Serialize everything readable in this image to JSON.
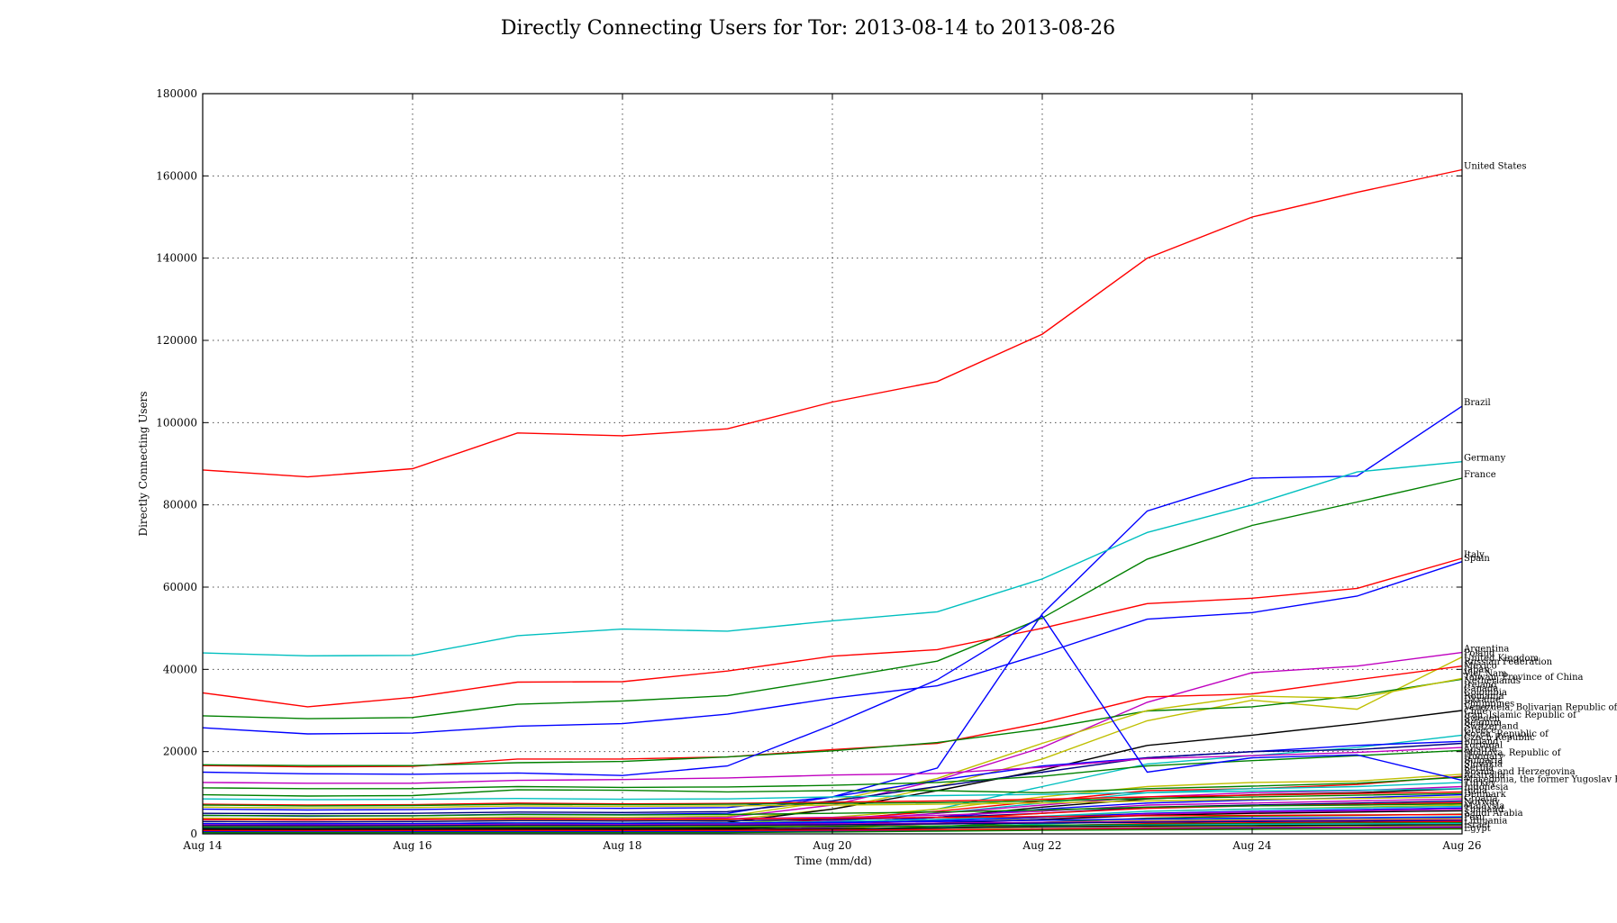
{
  "chart_data": {
    "type": "line",
    "title": "Directly Connecting Users for Tor: 2013-08-14 to 2013-08-26",
    "xlabel": "Time (mm/dd)",
    "ylabel": "Directly Connecting Users",
    "xlim": [
      0,
      12
    ],
    "ylim": [
      0,
      180000
    ],
    "grid": true,
    "x": [
      0,
      1,
      2,
      3,
      4,
      5,
      6,
      7,
      8,
      9,
      10,
      11,
      12
    ],
    "x_dates": [
      "2013-08-14",
      "2013-08-15",
      "2013-08-16",
      "2013-08-17",
      "2013-08-18",
      "2013-08-19",
      "2013-08-20",
      "2013-08-21",
      "2013-08-22",
      "2013-08-23",
      "2013-08-24",
      "2013-08-25",
      "2013-08-26"
    ],
    "x_ticks": [
      {
        "value": 0,
        "label": "Aug 14"
      },
      {
        "value": 2,
        "label": "Aug 16"
      },
      {
        "value": 4,
        "label": "Aug 18"
      },
      {
        "value": 6,
        "label": "Aug 20"
      },
      {
        "value": 8,
        "label": "Aug 22"
      },
      {
        "value": 10,
        "label": "Aug 24"
      },
      {
        "value": 12,
        "label": "Aug 26"
      }
    ],
    "y_ticks": [
      {
        "value": 0,
        "label": "0"
      },
      {
        "value": 20000,
        "label": "20000"
      },
      {
        "value": 40000,
        "label": "40000"
      },
      {
        "value": 60000,
        "label": "60000"
      },
      {
        "value": 80000,
        "label": "80000"
      },
      {
        "value": 100000,
        "label": "100000"
      },
      {
        "value": 120000,
        "label": "120000"
      },
      {
        "value": 140000,
        "label": "140000"
      },
      {
        "value": 160000,
        "label": "160000"
      },
      {
        "value": 180000,
        "label": "180000"
      }
    ],
    "series": [
      {
        "name": "United States",
        "color": "#ff0000",
        "values": [
          88500,
          86800,
          88800,
          97500,
          96800,
          98500,
          105000,
          110000,
          121500,
          140000,
          150000,
          156000,
          161500
        ]
      },
      {
        "name": "Brazil",
        "color": "#0000ff",
        "values": [
          4500,
          4300,
          4400,
          4800,
          4700,
          5000,
          9000,
          16000,
          53500,
          78500,
          86500,
          87000,
          104000
        ]
      },
      {
        "name": "Germany",
        "color": "#00bfbf",
        "values": [
          44000,
          43300,
          43400,
          48200,
          49800,
          49300,
          51800,
          54000,
          62000,
          73300,
          80000,
          88000,
          90500
        ]
      },
      {
        "name": "France",
        "color": "#008000",
        "values": [
          28700,
          28000,
          28300,
          31500,
          32300,
          33600,
          37700,
          42000,
          52500,
          66800,
          75000,
          80700,
          86500
        ]
      },
      {
        "name": "Italy",
        "color": "#ff0000",
        "values": [
          34300,
          30900,
          33200,
          36900,
          37000,
          39600,
          43200,
          44800,
          50000,
          56000,
          57300,
          59700,
          67000
        ]
      },
      {
        "name": "Spain",
        "color": "#0000ff",
        "values": [
          25800,
          24300,
          24500,
          26200,
          26800,
          29100,
          33000,
          36000,
          43800,
          52200,
          53800,
          57800,
          66200
        ]
      },
      {
        "name": "Argentina",
        "color": "#bf00bf",
        "values": [
          3500,
          3400,
          3500,
          3800,
          3700,
          4000,
          7000,
          13000,
          21000,
          32000,
          39200,
          40800,
          44100
        ]
      },
      {
        "name": "Poland",
        "color": "#bfbf00",
        "values": [
          3000,
          2900,
          3000,
          3300,
          3200,
          3400,
          6000,
          11500,
          18200,
          27500,
          32500,
          30300,
          43000
        ]
      },
      {
        "name": "United Kingdom",
        "color": "#ff0000",
        "values": [
          16600,
          16300,
          16400,
          18200,
          18200,
          18700,
          20500,
          22000,
          27000,
          33300,
          34000,
          37500,
          40800
        ]
      },
      {
        "name": "Mexico",
        "color": "#008000",
        "values": [
          16800,
          16600,
          16600,
          17300,
          17600,
          18700,
          20200,
          22200,
          25500,
          29900,
          30900,
          33600,
          37600
        ]
      },
      {
        "name": "Russian Federation",
        "color": "#bfbf00",
        "values": [
          3800,
          3700,
          3800,
          4100,
          4000,
          4300,
          8000,
          13500,
          22000,
          30000,
          33500,
          33000,
          37800
        ]
      },
      {
        "name": "Japan",
        "color": "#000000",
        "values": [
          2500,
          2400,
          2500,
          2700,
          2600,
          2800,
          6000,
          10500,
          15500,
          21500,
          24000,
          26800,
          30000
        ]
      },
      {
        "name": "Viet Nam",
        "color": "#00bfbf",
        "values": [
          1200,
          1100,
          1200,
          1300,
          1300,
          1400,
          3000,
          6000,
          11500,
          17000,
          19000,
          21000,
          24000
        ]
      },
      {
        "name": "Taiwan, Province of China",
        "color": "#0000ff",
        "values": [
          6000,
          5800,
          5900,
          6300,
          6200,
          6400,
          9000,
          13000,
          16500,
          18500,
          20000,
          21500,
          22500
        ]
      },
      {
        "name": "Netherlands",
        "color": "#000080",
        "values": [
          5000,
          4900,
          5000,
          5300,
          5200,
          5400,
          8000,
          11500,
          15000,
          18500,
          20000,
          20500,
          22000
        ]
      },
      {
        "name": "Ireland",
        "color": "#bf00bf",
        "values": [
          12500,
          12300,
          12300,
          13000,
          13200,
          13600,
          14300,
          14700,
          16200,
          18300,
          19000,
          19800,
          21000
        ]
      },
      {
        "name": "Canada",
        "color": "#008000",
        "values": [
          11200,
          11000,
          11000,
          11500,
          11300,
          11400,
          11800,
          12500,
          14000,
          16500,
          17800,
          19000,
          20300
        ]
      },
      {
        "name": "Colombia",
        "color": "#bfbf00",
        "values": [
          2200,
          2100,
          2200,
          2400,
          2300,
          2500,
          4000,
          6000,
          9000,
          11500,
          12500,
          12800,
          14500
        ]
      },
      {
        "name": "Romania",
        "color": "#ff0000",
        "values": [
          2000,
          1900,
          2000,
          2200,
          2100,
          2200,
          3500,
          5500,
          8000,
          10500,
          11000,
          12000,
          14000
        ]
      },
      {
        "name": "Ukraine",
        "color": "#008000",
        "values": [
          9500,
          9200,
          9300,
          10700,
          10600,
          10200,
          10500,
          10500,
          10000,
          11000,
          11600,
          12300,
          13800
        ]
      },
      {
        "name": "Philippines",
        "color": "#0000ff",
        "values": [
          15000,
          14600,
          14500,
          14800,
          14200,
          16500,
          26500,
          37500,
          53000,
          15000,
          18500,
          19200,
          13000
        ]
      },
      {
        "name": "Venezuela, Bolivarian Republic of",
        "color": "#00bfbf",
        "values": [
          1500,
          1400,
          1500,
          1600,
          1600,
          1700,
          3000,
          5000,
          7500,
          10000,
          11000,
          11500,
          12500
        ]
      },
      {
        "name": "Chile",
        "color": "#bf00bf",
        "values": [
          1800,
          1700,
          1800,
          2000,
          1900,
          2000,
          3200,
          5000,
          7000,
          9000,
          10000,
          10500,
          11500
        ]
      },
      {
        "name": "Iran, Islamic Republic of",
        "color": "#000000",
        "values": [
          1200,
          1100,
          1200,
          1300,
          1300,
          1400,
          2500,
          4000,
          6500,
          8500,
          9500,
          10000,
          11000
        ]
      },
      {
        "name": "Sweden",
        "color": "#00bfbf",
        "values": [
          8500,
          8300,
          8400,
          8600,
          8400,
          8500,
          9000,
          9300,
          9600,
          10000,
          10400,
          10600,
          11000
        ]
      },
      {
        "name": "Belgium",
        "color": "#ff0000",
        "values": [
          7200,
          7000,
          7100,
          7500,
          7300,
          7400,
          7700,
          8000,
          8400,
          9000,
          9400,
          9800,
          10200
        ]
      },
      {
        "name": "Switzerland",
        "color": "#008000",
        "values": [
          7000,
          6800,
          6900,
          7200,
          7100,
          7200,
          7400,
          7600,
          8000,
          8600,
          9000,
          9400,
          9800
        ]
      },
      {
        "name": "Greece",
        "color": "#0000ff",
        "values": [
          1500,
          1400,
          1500,
          1600,
          1600,
          1700,
          2500,
          4000,
          6000,
          7500,
          8200,
          8800,
          9500
        ]
      },
      {
        "name": "Korea, Republic of",
        "color": "#bfbf00",
        "values": [
          6500,
          6300,
          6400,
          6800,
          6700,
          6800,
          7000,
          7200,
          7500,
          8000,
          8400,
          8600,
          9000
        ]
      },
      {
        "name": "Czech Republic",
        "color": "#bf00bf",
        "values": [
          3500,
          3400,
          3500,
          3700,
          3600,
          3700,
          4000,
          4500,
          5500,
          7000,
          7500,
          8000,
          8500
        ]
      },
      {
        "name": "Finland",
        "color": "#000080",
        "values": [
          3000,
          2900,
          3000,
          3200,
          3100,
          3200,
          3500,
          4000,
          5000,
          6500,
          7000,
          7500,
          8000
        ]
      },
      {
        "name": "Portugal",
        "color": "#ff0000",
        "values": [
          1000,
          950,
          1000,
          1100,
          1100,
          1200,
          2000,
          3500,
          5000,
          6200,
          6800,
          7200,
          7600
        ]
      },
      {
        "name": "Austria",
        "color": "#008000",
        "values": [
          4500,
          4400,
          4400,
          4700,
          4600,
          4700,
          5000,
          5300,
          5800,
          6500,
          6800,
          7000,
          7300
        ]
      },
      {
        "name": "Moldova, Republic of",
        "color": "#bfbf00",
        "values": [
          500,
          480,
          500,
          550,
          540,
          560,
          1200,
          2500,
          4000,
          5500,
          6000,
          6500,
          7000
        ]
      },
      {
        "name": "Hungary",
        "color": "#00bfbf",
        "values": [
          2500,
          2400,
          2500,
          2700,
          2600,
          2700,
          3000,
          3500,
          4300,
          5500,
          6000,
          6300,
          6700
        ]
      },
      {
        "name": "Bulgaria",
        "color": "#0000ff",
        "values": [
          2000,
          1900,
          2000,
          2100,
          2100,
          2200,
          2600,
          3200,
          4000,
          5000,
          5500,
          5900,
          6300
        ]
      },
      {
        "name": "Slovakia",
        "color": "#bf00bf",
        "values": [
          800,
          780,
          800,
          850,
          840,
          860,
          1500,
          2500,
          3500,
          4800,
          5300,
          5600,
          6000
        ]
      },
      {
        "name": "Serbia",
        "color": "#000000",
        "values": [
          1200,
          1150,
          1200,
          1300,
          1250,
          1300,
          1800,
          2600,
          3500,
          4500,
          5000,
          5300,
          5600
        ]
      },
      {
        "name": "Bosnia and Herzegovina",
        "color": "#008000",
        "values": [
          400,
          380,
          400,
          420,
          410,
          430,
          900,
          1800,
          2800,
          3800,
          4300,
          4500,
          4800
        ]
      },
      {
        "name": "Australia",
        "color": "#ff0000",
        "values": [
          3500,
          3400,
          3500,
          3600,
          3500,
          3600,
          3800,
          4000,
          4200,
          4400,
          4500,
          4600,
          4700
        ]
      },
      {
        "name": "Macedonia, the former Yugoslav Republic of",
        "color": "#00bfbf",
        "values": [
          300,
          290,
          300,
          320,
          310,
          330,
          700,
          1500,
          2400,
          3200,
          3600,
          3900,
          4200
        ]
      },
      {
        "name": "Turkey",
        "color": "#0000ff",
        "values": [
          2500,
          2450,
          2500,
          2600,
          2550,
          2600,
          2800,
          3000,
          3300,
          3600,
          3800,
          3900,
          4000
        ]
      },
      {
        "name": "Indonesia",
        "color": "#bfbf00",
        "values": [
          1800,
          1750,
          1800,
          1900,
          1850,
          1900,
          2100,
          2400,
          2800,
          3200,
          3400,
          3500,
          3700
        ]
      },
      {
        "name": "India",
        "color": "#bf00bf",
        "values": [
          2200,
          2150,
          2200,
          2300,
          2250,
          2300,
          2400,
          2600,
          2800,
          3000,
          3200,
          3300,
          3400
        ]
      },
      {
        "name": "Denmark",
        "color": "#000080",
        "values": [
          2000,
          1950,
          2000,
          2100,
          2050,
          2100,
          2200,
          2400,
          2600,
          2800,
          3000,
          3100,
          3200
        ]
      },
      {
        "name": "Croatia",
        "color": "#ff0000",
        "values": [
          600,
          580,
          600,
          640,
          620,
          650,
          900,
          1400,
          2000,
          2500,
          2700,
          2800,
          3000
        ]
      },
      {
        "name": "Norway",
        "color": "#008000",
        "values": [
          1600,
          1550,
          1600,
          1650,
          1620,
          1650,
          1750,
          1900,
          2100,
          2300,
          2500,
          2600,
          2700
        ]
      },
      {
        "name": "Malaysia",
        "color": "#00bfbf",
        "values": [
          900,
          870,
          900,
          950,
          930,
          950,
          1100,
          1400,
          1800,
          2100,
          2300,
          2400,
          2500
        ]
      },
      {
        "name": "Thailand",
        "color": "#000000",
        "values": [
          1000,
          980,
          1000,
          1050,
          1030,
          1050,
          1200,
          1400,
          1700,
          1900,
          2000,
          2100,
          2200
        ]
      },
      {
        "name": "Saudi Arabia",
        "color": "#bfbf00",
        "values": [
          700,
          680,
          700,
          740,
          720,
          740,
          850,
          1000,
          1300,
          1600,
          1700,
          1800,
          1900
        ]
      },
      {
        "name": "Peru",
        "color": "#bf00bf",
        "values": [
          400,
          390,
          400,
          420,
          410,
          420,
          600,
          900,
          1200,
          1400,
          1500,
          1600,
          1700
        ]
      },
      {
        "name": "Lithuania",
        "color": "#0000ff",
        "values": [
          500,
          490,
          500,
          520,
          510,
          520,
          650,
          850,
          1100,
          1300,
          1400,
          1450,
          1500
        ]
      },
      {
        "name": "Israel",
        "color": "#ff0000",
        "values": [
          800,
          780,
          800,
          830,
          810,
          830,
          900,
          1000,
          1100,
          1200,
          1250,
          1300,
          1350
        ]
      },
      {
        "name": "Egypt",
        "color": "#008000",
        "values": [
          300,
          290,
          300,
          310,
          300,
          310,
          450,
          650,
          850,
          1000,
          1100,
          1150,
          1200
        ]
      }
    ],
    "end_labels": [
      "United States",
      "Brazil",
      "Germany",
      "France",
      "Italy",
      "Spain",
      "Argentina",
      "Poland",
      "United Kingdom",
      "Mexico",
      "Russian Federation",
      "Japan",
      "Viet Nam",
      "Taiwan, Province of China",
      "Netherlands",
      "Ireland",
      "Canada",
      "Colombia",
      "Romania",
      "Ukraine",
      "Philippines",
      "Venezuela, Bolivarian Republic of",
      "Chile",
      "Iran, Islamic Republic of",
      "Sweden",
      "Belgium",
      "Switzerland",
      "Greece",
      "Korea, Republic of",
      "Czech Republic",
      "Finland",
      "Portugal",
      "Austria",
      "Moldova, Republic of",
      "Hungary",
      "Bulgaria",
      "Slovakia",
      "Serbia",
      "Bosnia and Herzegovina",
      "Australia",
      "Macedonia, the former Yugoslav Republic of",
      "Turkey",
      "Indonesia",
      "India",
      "Denmark",
      "Croatia",
      "Norway",
      "Malaysia",
      "Thailand",
      "Saudi Arabia",
      "Peru",
      "Lithuania",
      "Israel",
      "Egypt"
    ]
  }
}
